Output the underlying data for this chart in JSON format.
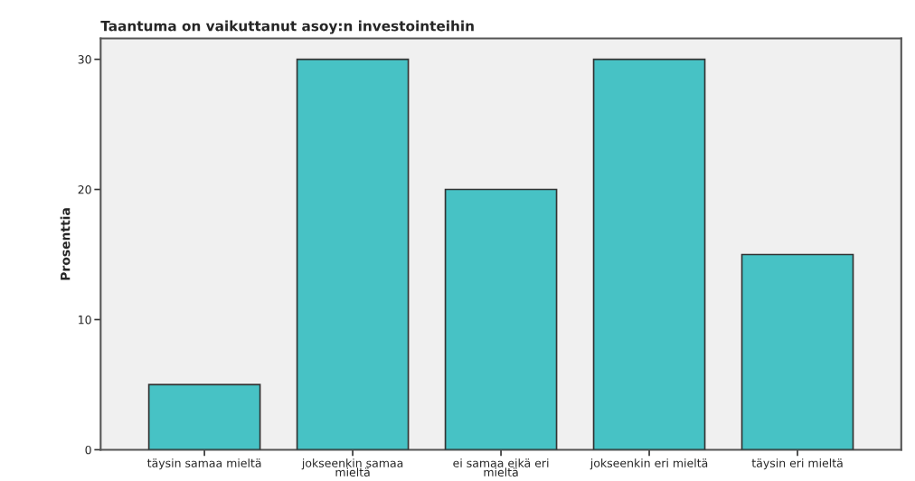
{
  "chart_data": {
    "type": "bar",
    "title": "Taantuma on vaikuttanut asoy:n investointeihin",
    "ylabel": "Prosenttia",
    "categories": [
      "täysin samaa mieltä",
      "jokseenkin samaa\nmieltä",
      "ei samaa eikä eri\nmieltä",
      "jokseenkin eri mieltä",
      "täysin eri mieltä"
    ],
    "values": [
      5,
      30,
      20,
      30,
      15
    ],
    "color": "#47c2c5",
    "ylim": [
      0,
      31.6
    ],
    "yticks": [
      0,
      10,
      20,
      30
    ],
    "grid": false,
    "legend": false
  }
}
